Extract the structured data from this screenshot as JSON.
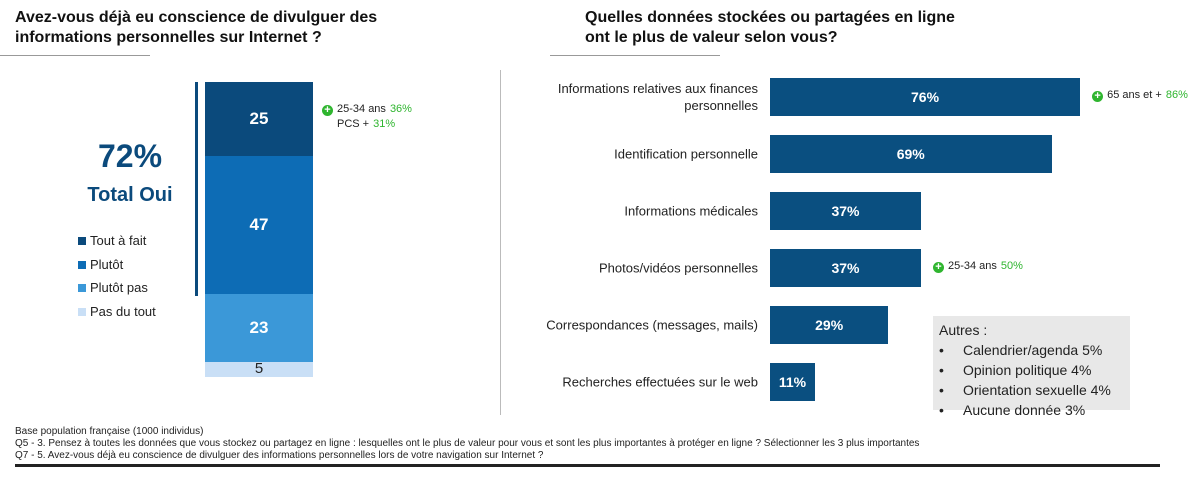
{
  "chart_data": [
    {
      "type": "stacked_bar",
      "title": "Avez-vous déjà eu conscience de divulguer des\ninformations personnelles sur Internet ?",
      "categories": [
        null
      ],
      "series": [
        {
          "name": "Tout à fait",
          "color": "#0b4a7c",
          "values": [
            25
          ]
        },
        {
          "name": "Plutôt",
          "color": "#0d6cb5",
          "values": [
            47
          ]
        },
        {
          "name": "Plutôt pas",
          "color": "#3b98d8",
          "values": [
            23
          ]
        },
        {
          "name": "Pas du tout",
          "color": "#c9dff6",
          "values": [
            5
          ]
        }
      ],
      "total": "72%",
      "total_label": "Total Oui",
      "callout": [
        {
          "text": "25-34 ans",
          "highlight": "36%"
        },
        {
          "text": "PCS +",
          "highlight": "31%"
        }
      ]
    },
    {
      "type": "barh",
      "title": "Quelles données stockées ou partagées en ligne\nont le plus de valeur selon vous?",
      "categories": [
        "Informations relatives aux finances\npersonnelles",
        "Identification personnelle",
        "Informations médicales",
        "Photos/vidéos personnelles",
        "Correspondances (messages, mails)",
        "Recherches effectuées sur le web"
      ],
      "values": [
        76,
        69,
        37,
        37,
        29,
        11
      ],
      "value_labels": [
        "76%",
        "69%",
        "37%",
        "37%",
        "29%",
        "11%"
      ],
      "color": "#0a4f80",
      "callouts": [
        {
          "text": "65 ans et +",
          "highlight": "86%"
        },
        null,
        null,
        {
          "text": "25-34 ans",
          "highlight": "50%"
        },
        null,
        null
      ],
      "others": {
        "title": "Autres :",
        "items": [
          "Calendrier/agenda 5%",
          "Opinion politique 4%",
          "Orientation sexuelle 4%",
          "Aucune donnée 3%"
        ]
      }
    }
  ],
  "footnotes": [
    "Base population française (1000 individus)",
    "Q5 - 3. Pensez à toutes les données que vous stockez ou partagez en ligne : lesquelles ont le plus de valeur pour vous et sont les plus importantes à protéger en ligne ? Sélectionner les 3 plus importantes",
    "Q7 - 5. Avez-vous déjà eu conscience de divulguer des informations personnelles lors de votre navigation sur Internet ?"
  ]
}
